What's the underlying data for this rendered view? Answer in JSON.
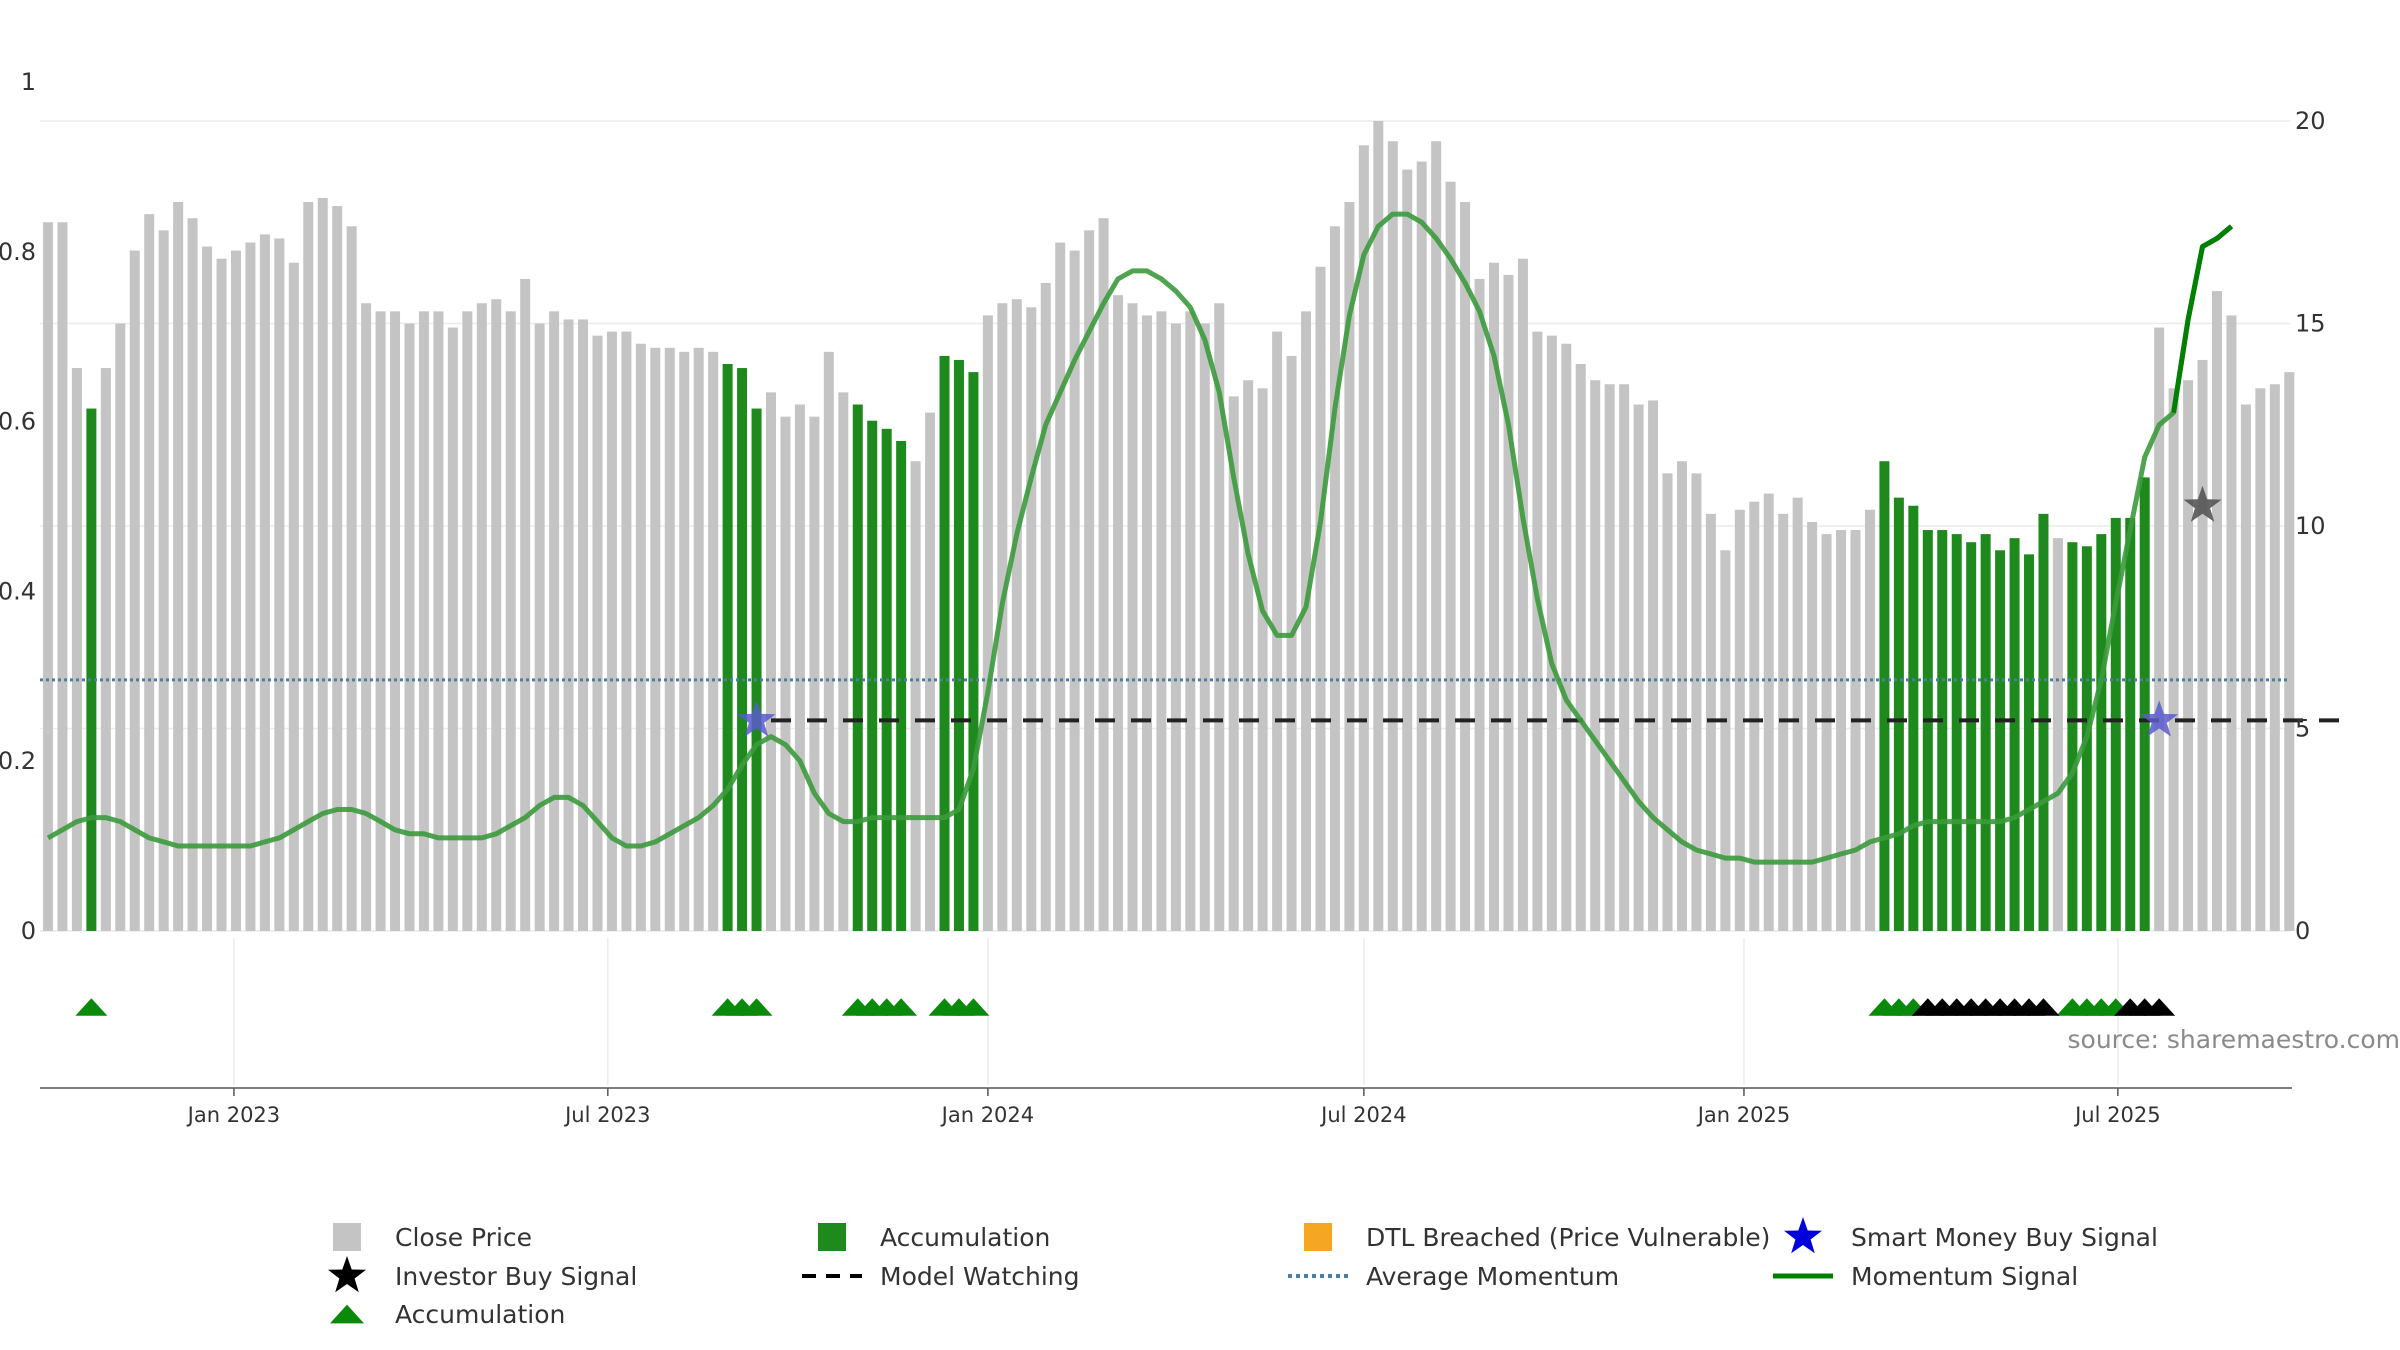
{
  "chart_data": {
    "type": "bar",
    "x_start": "2022-10-03",
    "period": "weekly",
    "left_axis": {
      "ticks": [
        "0",
        "0.2",
        "0.4",
        "0.6",
        "0.8",
        "1"
      ],
      "range": [
        0,
        1
      ]
    },
    "right_axis": {
      "ticks": [
        "0",
        "5",
        "10",
        "15",
        "20"
      ],
      "range": [
        0,
        20
      ]
    },
    "x_ticks": [
      "Jan 2023",
      "Jul 2023",
      "Jan 2024",
      "Jul 2024",
      "Jan 2025",
      "Jul 2025"
    ],
    "close_price": [
      17.5,
      17.5,
      13.9,
      12.9,
      13.9,
      15.0,
      16.8,
      17.7,
      17.3,
      18.0,
      17.6,
      16.9,
      16.6,
      16.8,
      17.0,
      17.2,
      17.1,
      16.5,
      18.0,
      18.1,
      17.9,
      17.4,
      15.5,
      15.3,
      15.3,
      15.0,
      15.3,
      15.3,
      14.9,
      15.3,
      15.5,
      15.6,
      15.3,
      16.1,
      15.0,
      15.3,
      15.1,
      15.1,
      14.7,
      14.8,
      14.8,
      14.5,
      14.4,
      14.4,
      14.3,
      14.4,
      14.3,
      14.0,
      13.9,
      12.9,
      13.3,
      12.7,
      13.0,
      12.7,
      14.3,
      13.3,
      13.0,
      12.6,
      12.4,
      12.1,
      11.6,
      12.8,
      14.2,
      14.1,
      13.8,
      15.2,
      15.5,
      15.6,
      15.4,
      16.0,
      17.0,
      16.8,
      17.3,
      17.6,
      15.7,
      15.5,
      15.2,
      15.3,
      15.0,
      15.3,
      15.0,
      15.5,
      13.2,
      13.6,
      13.4,
      14.8,
      14.2,
      15.3,
      16.4,
      17.4,
      18.0,
      19.4,
      20.0,
      19.5,
      18.8,
      19.0,
      19.5,
      18.5,
      18.0,
      16.1,
      16.5,
      16.2,
      16.6,
      14.8,
      14.7,
      14.5,
      14.0,
      13.6,
      13.5,
      13.5,
      13.0,
      13.1,
      11.3,
      11.6,
      11.3,
      10.3,
      9.4,
      10.4,
      10.6,
      10.8,
      10.3,
      10.7,
      10.1,
      9.8,
      9.9,
      9.9,
      10.4,
      11.6,
      10.7,
      10.5,
      9.9,
      9.9,
      9.8,
      9.6,
      9.8,
      9.4,
      9.7,
      9.3,
      10.3,
      9.7,
      9.6,
      9.5,
      9.8,
      10.2,
      10.2,
      11.2,
      14.9,
      13.4,
      13.6,
      14.1,
      15.8,
      15.2,
      13.0,
      13.4,
      13.5,
      13.8
    ],
    "accumulation_weeks": [
      3,
      47,
      48,
      49,
      56,
      57,
      58,
      59,
      62,
      63,
      64,
      127,
      128,
      129,
      130,
      131,
      132,
      133,
      134,
      135,
      136,
      137,
      138,
      140,
      141,
      142,
      143,
      144,
      145
    ],
    "momentum_signal": [
      2.3,
      2.5,
      2.7,
      2.8,
      2.8,
      2.7,
      2.5,
      2.3,
      2.2,
      2.1,
      2.1,
      2.1,
      2.1,
      2.1,
      2.1,
      2.2,
      2.3,
      2.5,
      2.7,
      2.9,
      3.0,
      3.0,
      2.9,
      2.7,
      2.5,
      2.4,
      2.4,
      2.3,
      2.3,
      2.3,
      2.3,
      2.4,
      2.6,
      2.8,
      3.1,
      3.3,
      3.3,
      3.1,
      2.7,
      2.3,
      2.1,
      2.1,
      2.2,
      2.4,
      2.6,
      2.8,
      3.1,
      3.5,
      4.1,
      4.6,
      4.8,
      4.6,
      4.2,
      3.4,
      2.9,
      2.7,
      2.7,
      2.8,
      2.8,
      2.8,
      2.8,
      2.8,
      2.8,
      3.0,
      4.0,
      5.9,
      8.1,
      9.8,
      11.2,
      12.5,
      13.3,
      14.1,
      14.8,
      15.5,
      16.1,
      16.3,
      16.3,
      16.1,
      15.8,
      15.4,
      14.6,
      13.3,
      11.2,
      9.3,
      7.9,
      7.3,
      7.3,
      8.0,
      10.1,
      12.9,
      15.2,
      16.7,
      17.4,
      17.7,
      17.7,
      17.5,
      17.1,
      16.6,
      16.0,
      15.3,
      14.2,
      12.5,
      10.2,
      8.2,
      6.6,
      5.7,
      5.2,
      4.7,
      4.2,
      3.7,
      3.2,
      2.8,
      2.5,
      2.2,
      2.0,
      1.9,
      1.8,
      1.8,
      1.7,
      1.7,
      1.7,
      1.7,
      1.7,
      1.8,
      1.9,
      2.0,
      2.2,
      2.3,
      2.4,
      2.6,
      2.7,
      2.7,
      2.7,
      2.7,
      2.7,
      2.7,
      2.8,
      3.0,
      3.2,
      3.4,
      3.9,
      4.8,
      6.2,
      8.1,
      9.9,
      11.7,
      12.5,
      12.8,
      15.1,
      16.9,
      17.1,
      17.4
    ],
    "average_momentum": 6.2,
    "model_watching": {
      "level": 5.2,
      "from_week": 50,
      "to_week": 159
    },
    "smart_money_buy_signals": [
      {
        "week": 49,
        "value": 5.2
      },
      {
        "week": 146,
        "value": 5.2
      }
    ],
    "investor_buy_signals": [
      {
        "week": 149,
        "value": 10.5
      }
    ],
    "accumulation_triangles": [
      3,
      47,
      48,
      49,
      56,
      57,
      58,
      59,
      62,
      63,
      64,
      127,
      128,
      129,
      140,
      141,
      142,
      143
    ],
    "investor_triangles": [
      130,
      131,
      132,
      133,
      134,
      135,
      136,
      137,
      138,
      144,
      145,
      146
    ],
    "source_text": "source: sharemaestro.com",
    "colors": {
      "close_price": "#c4c4c4",
      "accumulation": "#1e8a1e",
      "momentum": "#3c9a3c",
      "momentum_bold": "#008000",
      "average_momentum": "#4a7fa0",
      "smart_money": "#5b5bcf",
      "investor": "#555555",
      "dtl": "#f5a623",
      "triangle_green": "#0a8a0a",
      "triangle_black": "#000000"
    },
    "legend": [
      {
        "label": "Close Price",
        "marker": "gray-square"
      },
      {
        "label": "Accumulation",
        "marker": "green-square"
      },
      {
        "label": "DTL Breached (Price Vulnerable)",
        "marker": "orange-square"
      },
      {
        "label": "Smart Money Buy Signal",
        "marker": "blue-star"
      },
      {
        "label": "Investor Buy Signal",
        "marker": "black-star"
      },
      {
        "label": "Model Watching",
        "marker": "black-dashed-line"
      },
      {
        "label": "Average Momentum",
        "marker": "blue-dotted-line"
      },
      {
        "label": "Momentum Signal",
        "marker": "green-line"
      },
      {
        "label": "Accumulation",
        "marker": "green-triangle"
      }
    ]
  }
}
